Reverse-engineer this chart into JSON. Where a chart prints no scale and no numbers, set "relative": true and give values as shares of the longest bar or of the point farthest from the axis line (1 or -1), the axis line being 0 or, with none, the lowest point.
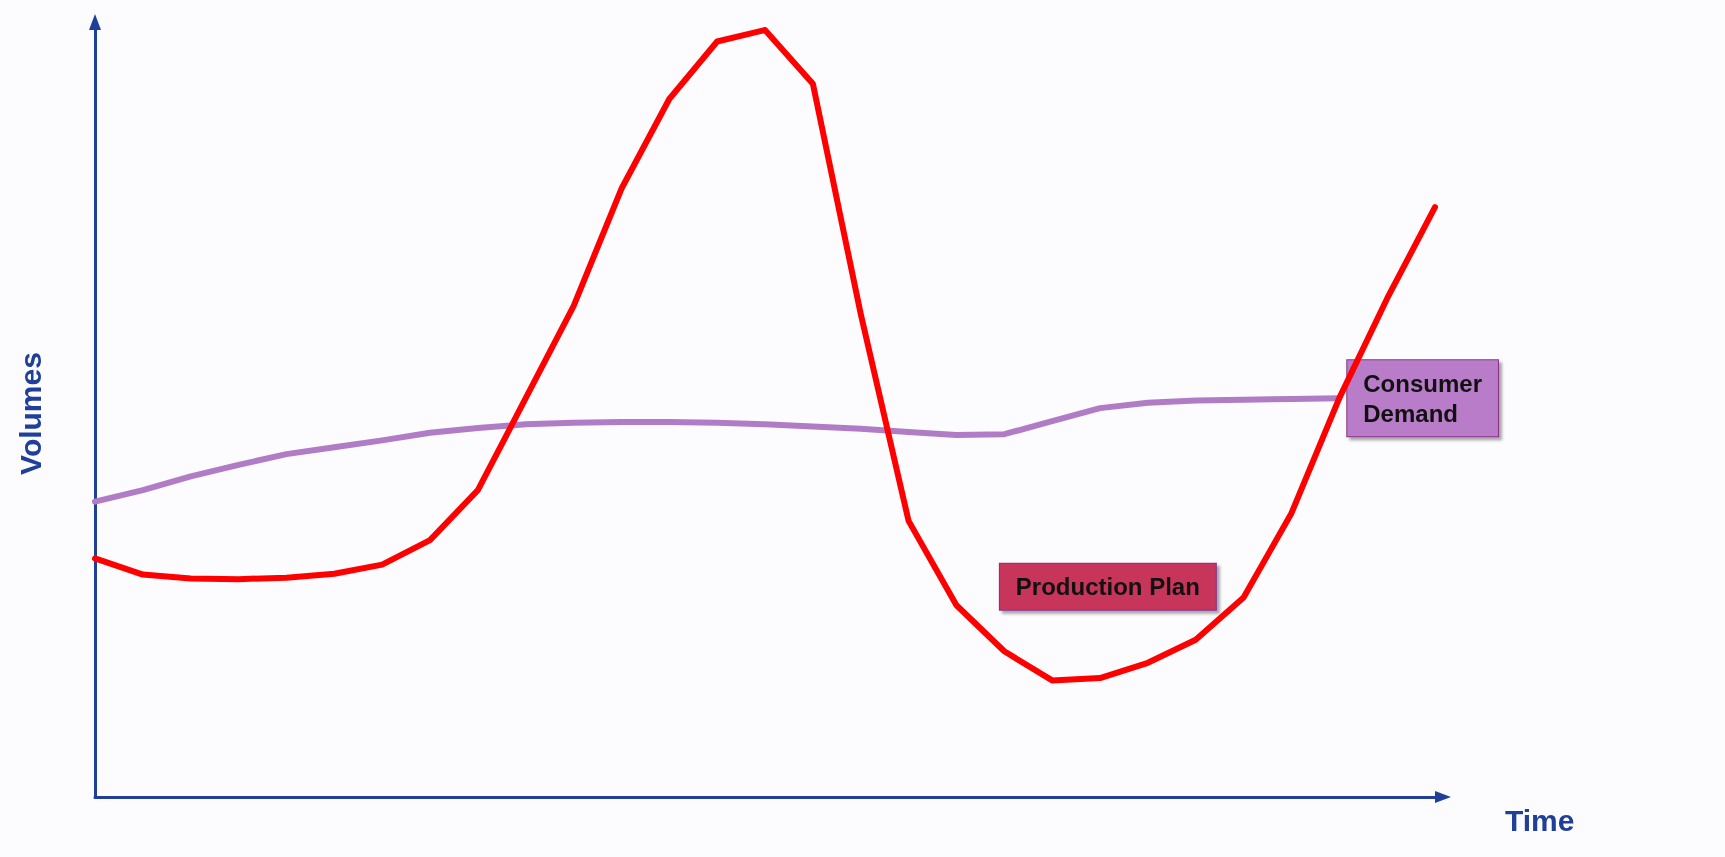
{
  "chart_data": {
    "type": "line",
    "relative": true,
    "xlabel": "Time",
    "ylabel": "Volumes",
    "legend": false,
    "marker": "none",
    "line_style": "solid",
    "categories": [
      null,
      null,
      null,
      null,
      null,
      null,
      null,
      null,
      null,
      null,
      null,
      null,
      null,
      null,
      null,
      null,
      null,
      null,
      null,
      null,
      null,
      null,
      null,
      null,
      null,
      null,
      null,
      null,
      null
    ],
    "series": [
      {
        "name": "Consumer Demand",
        "color": "#b07cc6",
        "values": [
          0.385,
          0.4,
          0.418,
          0.433,
          0.447,
          0.456,
          0.465,
          0.475,
          0.481,
          0.486,
          0.488,
          0.489,
          0.489,
          0.488,
          0.486,
          0.483,
          0.48,
          0.476,
          0.472,
          0.473,
          0.49,
          0.507,
          0.514,
          0.517,
          0.518,
          0.519,
          0.52,
          null,
          null
        ]
      },
      {
        "name": "Production Plan",
        "color": "#ff0000",
        "values": [
          0.311,
          0.29,
          0.285,
          0.284,
          0.286,
          0.291,
          0.303,
          0.335,
          0.4,
          0.52,
          0.64,
          0.793,
          0.91,
          0.985,
          1,
          0.93,
          0.63,
          0.36,
          0.25,
          0.19,
          0.152,
          0.155,
          0.175,
          0.205,
          0.26,
          0.37,
          0.52,
          0.65,
          0.769
        ]
      }
    ]
  }
}
